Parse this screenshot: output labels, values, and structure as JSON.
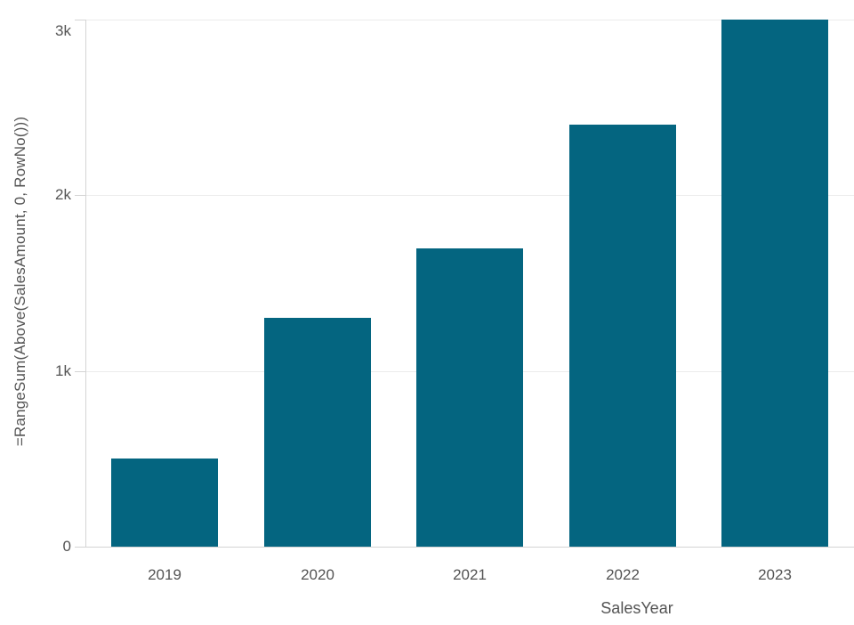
{
  "chart_data": {
    "type": "bar",
    "title": "",
    "categories": [
      "2019",
      "2020",
      "2021",
      "2022",
      "2023"
    ],
    "values": [
      500,
      1300,
      1700,
      2400,
      3000
    ],
    "xlabel": "SalesYear",
    "ylabel": "=RangeSum(Above(SalesAmount, 0, RowNo()))",
    "ylim": [
      0,
      3000
    ],
    "yticks": [
      {
        "value": 0,
        "label": "0"
      },
      {
        "value": 1000,
        "label": "1k"
      },
      {
        "value": 2000,
        "label": "2k"
      },
      {
        "value": 3000,
        "label": "3k"
      }
    ],
    "grid": "horizontal",
    "legend": "none"
  },
  "colors": {
    "bar": "#046580",
    "axis_line": "#d4d4d4",
    "gridline": "#ececec",
    "text": "#545454",
    "background": "#ffffff"
  }
}
